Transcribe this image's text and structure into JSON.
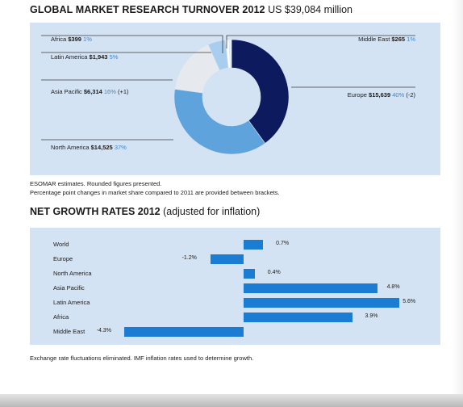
{
  "turnover": {
    "title_bold": "GLOBAL MARKET RESEARCH TURNOVER 2012",
    "title_rest": " US $39,084 million",
    "footnote1": "ESOMAR estimates. Rounded figures presented.",
    "footnote2": "Percentage point changes in market share compared to 2011 are provided between brackets."
  },
  "growth": {
    "title_bold": "NET GROWTH RATES 2012",
    "title_rest": " (adjusted for inflation)",
    "footnote": "Exchange rate fluctuations eliminated. IMF inflation rates used to determine growth."
  },
  "chart_data": [
    {
      "type": "pie",
      "variant": "donut",
      "title": "GLOBAL MARKET RESEARCH TURNOVER 2012 US $39,084 million",
      "unit": "US$ million",
      "slices": [
        {
          "name": "Europe",
          "value": 15639,
          "value_label": "$15,639",
          "share_label": "40%",
          "change_label": "(-2)",
          "color": "#0d1b5e"
        },
        {
          "name": "North America",
          "value": 14525,
          "value_label": "$14,525",
          "share_label": "37%",
          "change_label": "",
          "color": "#5ea3dc"
        },
        {
          "name": "Asia Pacific",
          "value": 6314,
          "value_label": "$6,314",
          "share_label": "16%",
          "change_label": "(+1)",
          "color": "#e6eaee"
        },
        {
          "name": "Latin America",
          "value": 1943,
          "value_label": "$1,943",
          "share_label": "5%",
          "change_label": "",
          "color": "#a9cdee"
        },
        {
          "name": "Africa",
          "value": 399,
          "value_label": "$399",
          "share_label": "1%",
          "change_label": "",
          "color": "#ffffff"
        },
        {
          "name": "Middle East",
          "value": 265,
          "value_label": "$265",
          "share_label": "1%",
          "change_label": "",
          "color": "#eef2f6"
        }
      ]
    },
    {
      "type": "bar",
      "orientation": "horizontal",
      "title": "NET GROWTH RATES 2012 (adjusted for inflation)",
      "unit": "%",
      "bar_color": "#1b7cd3",
      "categories": [
        "World",
        "Europe",
        "North America",
        "Asia Pacific",
        "Latin America",
        "Africa",
        "Middle East"
      ],
      "values": [
        0.7,
        -1.2,
        0.4,
        4.8,
        5.6,
        3.9,
        -4.3
      ],
      "value_labels": [
        "0.7%",
        "-1.2%",
        "0.4%",
        "4.8%",
        "5.6%",
        "3.9%",
        "-4.3%"
      ]
    }
  ]
}
